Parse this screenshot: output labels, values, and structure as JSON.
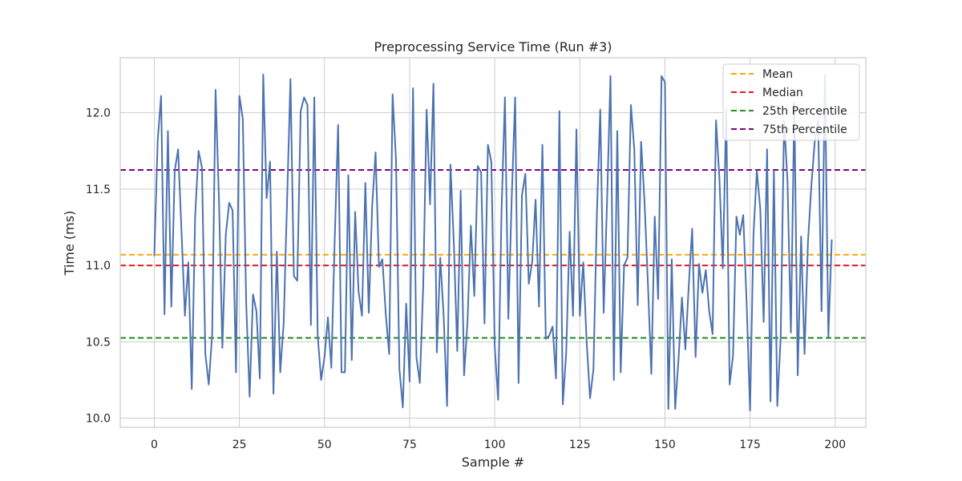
{
  "chart_data": {
    "type": "line",
    "title": "Preprocessing Service Time (Run #3)",
    "xlabel": "Sample #",
    "ylabel": "Time (ms)",
    "xlim": [
      -10,
      209
    ],
    "ylim": [
      9.94,
      12.36
    ],
    "xticks": [
      0,
      25,
      50,
      75,
      100,
      125,
      150,
      175,
      200
    ],
    "yticks": [
      10.0,
      10.5,
      11.0,
      11.5,
      12.0
    ],
    "grid": true,
    "legend_position": "top-right",
    "series": [
      {
        "color": "#4c72b0",
        "x_start": 0,
        "values": [
          11.06,
          11.82,
          12.11,
          10.68,
          11.88,
          10.73,
          11.62,
          11.76,
          11.22,
          10.67,
          11.02,
          10.19,
          11.32,
          11.75,
          11.64,
          10.42,
          10.22,
          10.55,
          12.15,
          11.43,
          10.46,
          11.2,
          11.41,
          11.36,
          10.3,
          12.11,
          11.96,
          10.75,
          10.14,
          10.81,
          10.7,
          10.26,
          12.25,
          11.44,
          11.68,
          10.16,
          11.09,
          10.3,
          10.62,
          11.42,
          12.22,
          10.93,
          10.9,
          12.01,
          12.1,
          12.05,
          10.61,
          12.1,
          10.54,
          10.25,
          10.4,
          10.66,
          10.33,
          11.17,
          11.92,
          10.3,
          10.3,
          11.59,
          10.38,
          11.35,
          10.83,
          10.67,
          11.54,
          10.69,
          11.39,
          11.74,
          10.99,
          11.04,
          10.68,
          10.42,
          12.12,
          11.69,
          10.32,
          10.07,
          10.75,
          10.24,
          12.16,
          10.4,
          10.23,
          10.87,
          12.02,
          11.4,
          12.19,
          10.43,
          11.05,
          10.67,
          10.08,
          11.66,
          11.14,
          10.44,
          11.49,
          10.28,
          10.63,
          11.26,
          10.8,
          11.65,
          11.61,
          10.62,
          11.79,
          11.68,
          10.47,
          10.12,
          11.36,
          12.1,
          10.65,
          11.45,
          12.1,
          10.23,
          11.46,
          11.6,
          10.88,
          11.02,
          11.43,
          10.73,
          11.79,
          10.52,
          10.54,
          10.6,
          10.26,
          12.01,
          10.09,
          10.43,
          11.22,
          10.67,
          11.89,
          10.67,
          11.02,
          10.5,
          10.13,
          10.32,
          11.33,
          12.02,
          10.69,
          11.42,
          12.24,
          10.25,
          11.88,
          10.3,
          11.0,
          11.05,
          12.05,
          11.76,
          10.74,
          11.81,
          11.42,
          10.88,
          10.29,
          11.32,
          10.78,
          12.24,
          12.2,
          10.06,
          11.04,
          10.06,
          10.39,
          10.79,
          10.45,
          10.87,
          11.24,
          10.4,
          11.01,
          10.82,
          10.97,
          10.7,
          10.55,
          11.95,
          11.57,
          10.98,
          12.02,
          10.22,
          10.41,
          11.32,
          11.2,
          11.33,
          10.75,
          10.05,
          11.2,
          11.62,
          11.37,
          10.63,
          11.76,
          10.11,
          11.62,
          10.08,
          10.53,
          11.95,
          11.55,
          10.56,
          12.07,
          10.28,
          11.19,
          10.42,
          11.15,
          11.52,
          11.81,
          11.95,
          10.7,
          12.25,
          10.53,
          11.17
        ]
      }
    ],
    "reference_lines": [
      {
        "name": "Mean",
        "value": 11.07,
        "color": "#ffa500"
      },
      {
        "name": "Median",
        "value": 11.0,
        "color": "#e41a1c"
      },
      {
        "name": "25th Percentile",
        "value": 10.525,
        "color": "#228b22"
      },
      {
        "name": "75th Percentile",
        "value": 11.625,
        "color": "#800080"
      }
    ]
  }
}
